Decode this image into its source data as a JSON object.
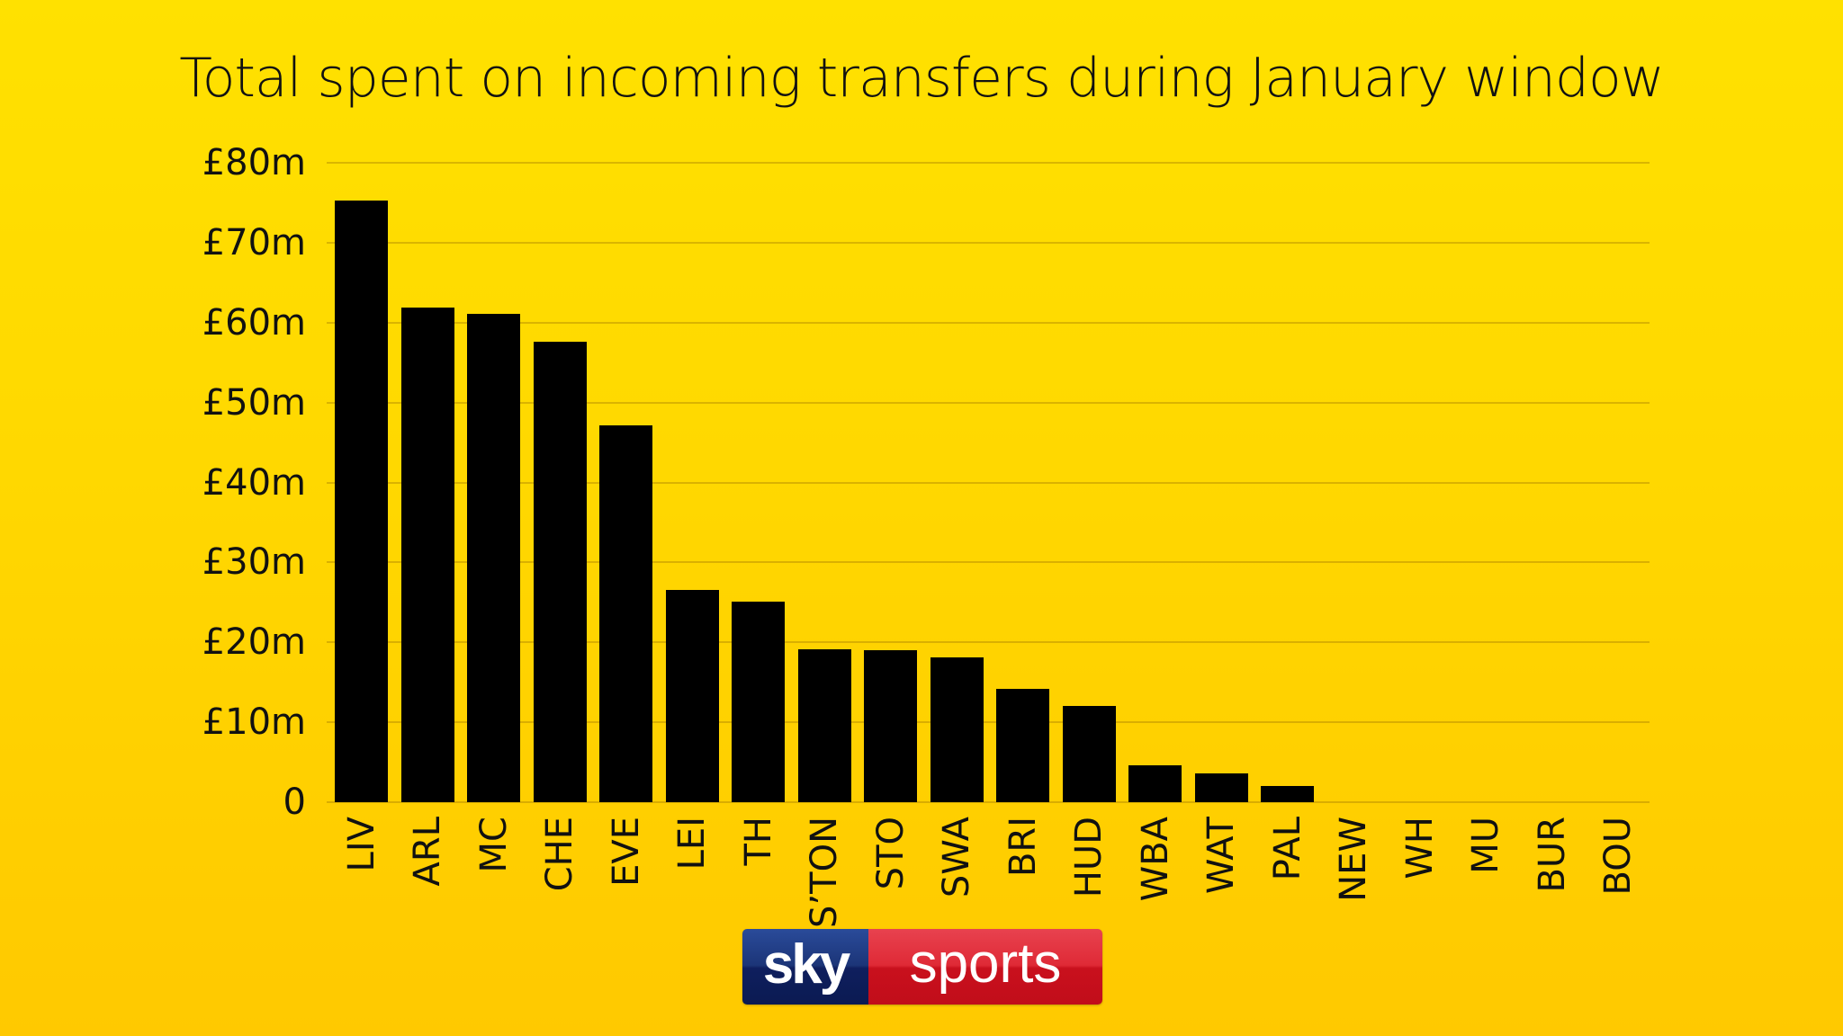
{
  "title": "Total spent on incoming transfers during January window",
  "y_axis": {
    "ticks": [
      "£80m",
      "£70m",
      "£60m",
      "£50m",
      "£40m",
      "£30m",
      "£20m",
      "£10m",
      "0"
    ]
  },
  "logo": {
    "sky": "sky",
    "sports": "sports"
  },
  "colors": {
    "background_top": "#FFE100",
    "background_bottom": "#FFC900",
    "bar": "#000000",
    "logo_blue": "#1c3578",
    "logo_red": "#d91f2b"
  },
  "chart_data": {
    "type": "bar",
    "title": "Total spent on incoming transfers during January window",
    "xlabel": "",
    "ylabel": "",
    "ylim": [
      0,
      80
    ],
    "y_ticks": [
      0,
      10,
      20,
      30,
      40,
      50,
      60,
      70,
      80
    ],
    "y_tick_labels": [
      "0",
      "£10m",
      "£20m",
      "£30m",
      "£40m",
      "£50m",
      "£60m",
      "£70m",
      "£80m"
    ],
    "grid": true,
    "legend": null,
    "unit": "£m",
    "categories": [
      "LIV",
      "ARL",
      "MC",
      "CHE",
      "EVE",
      "LEI",
      "TH",
      "S’TON",
      "STO",
      "SWA",
      "BRI",
      "HUD",
      "WBA",
      "WAT",
      "PAL",
      "NEW",
      "WH",
      "MU",
      "BUR",
      "BOU"
    ],
    "values": [
      75.3,
      61.9,
      61.1,
      57.6,
      47.1,
      26.5,
      25.1,
      19.1,
      19.0,
      18.1,
      14.2,
      12.0,
      4.6,
      3.6,
      2.0,
      0,
      0,
      0,
      0,
      0
    ]
  }
}
